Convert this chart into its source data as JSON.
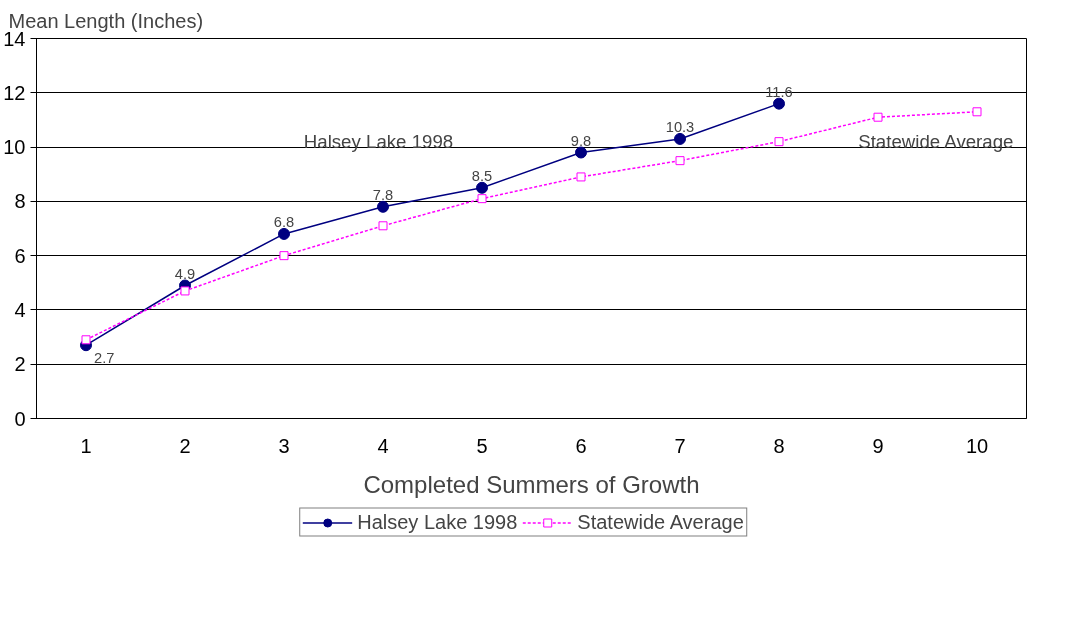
{
  "chart_data": {
    "type": "line",
    "xlabel": "Completed Summers of Growth",
    "ylabel": "Mean Length (Inches)",
    "categories": [
      "1",
      "2",
      "3",
      "4",
      "5",
      "6",
      "7",
      "8",
      "9",
      "10"
    ],
    "ylim": [
      0,
      14
    ],
    "yticks": [
      0,
      2,
      4,
      6,
      8,
      10,
      12,
      14
    ],
    "grid": "y",
    "legend": "bottom",
    "series": [
      {
        "name": "Halsey Lake 1998",
        "color": "#000080",
        "marker": "circle",
        "line_style": "solid",
        "values": [
          2.7,
          4.9,
          6.8,
          7.8,
          8.5,
          9.8,
          10.3,
          11.6,
          null,
          null
        ],
        "value_labels": [
          "2.7",
          "4.9",
          "6.8",
          "7.8",
          "8.5",
          "9.8",
          "10.3",
          "11.6",
          null,
          null
        ]
      },
      {
        "name": "Statewide Average",
        "color": "#ff00ff",
        "marker": "square",
        "line_style": "dashed",
        "values": [
          2.9,
          4.7,
          6.0,
          7.1,
          8.1,
          8.9,
          9.5,
          10.2,
          11.1,
          11.3
        ]
      }
    ]
  }
}
